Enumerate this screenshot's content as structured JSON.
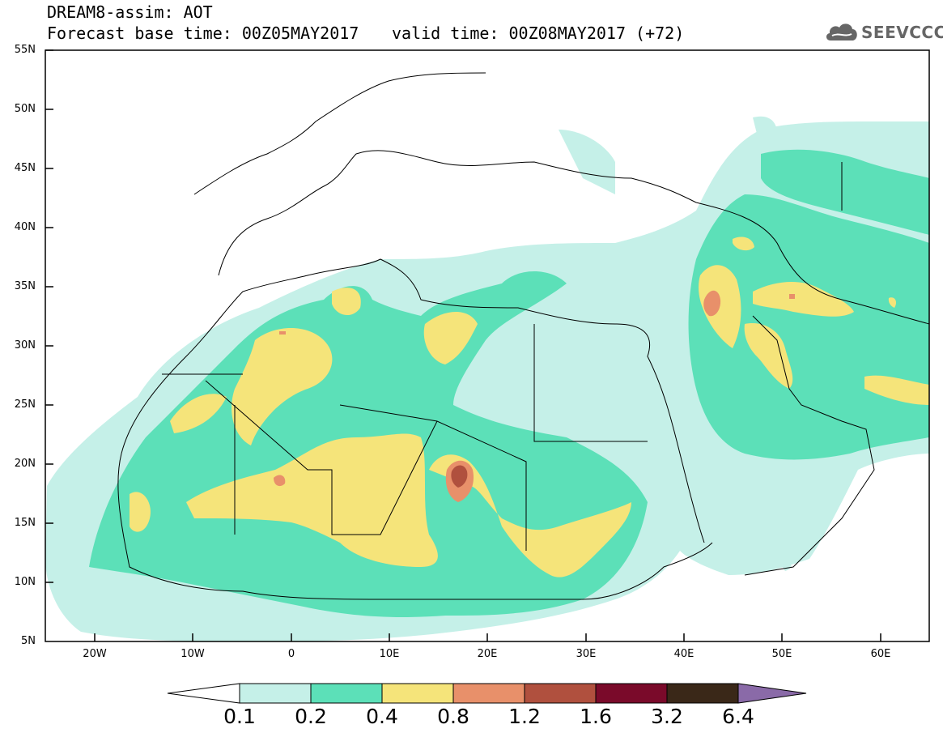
{
  "header": {
    "title": "DREAM8-assim: AOT",
    "base_time": "Forecast base time: 00Z05MAY2017",
    "valid_time": "valid time: 00Z08MAY2017 (+72)"
  },
  "logo": {
    "text": "SEEVCCC",
    "icon": "cloud-icon"
  },
  "axes": {
    "lat_labels": [
      "55N",
      "50N",
      "45N",
      "40N",
      "35N",
      "30N",
      "25N",
      "20N",
      "15N",
      "10N",
      "5N"
    ],
    "lon_labels": [
      "20W",
      "10W",
      "0",
      "10E",
      "20E",
      "30E",
      "40E",
      "50E",
      "60E"
    ],
    "lat_range": [
      5,
      55
    ],
    "lon_range": [
      -25,
      65
    ]
  },
  "colorbar": {
    "labels": [
      "0.1",
      "0.2",
      "0.4",
      "0.8",
      "1.2",
      "1.6",
      "3.2",
      "6.4"
    ],
    "colors": [
      "#ffffff",
      "#c5f0e8",
      "#5ce0b8",
      "#f5e47a",
      "#e8906a",
      "#b0503e",
      "#7a0a2a",
      "#3a2818",
      "#8a6aa8"
    ]
  }
}
